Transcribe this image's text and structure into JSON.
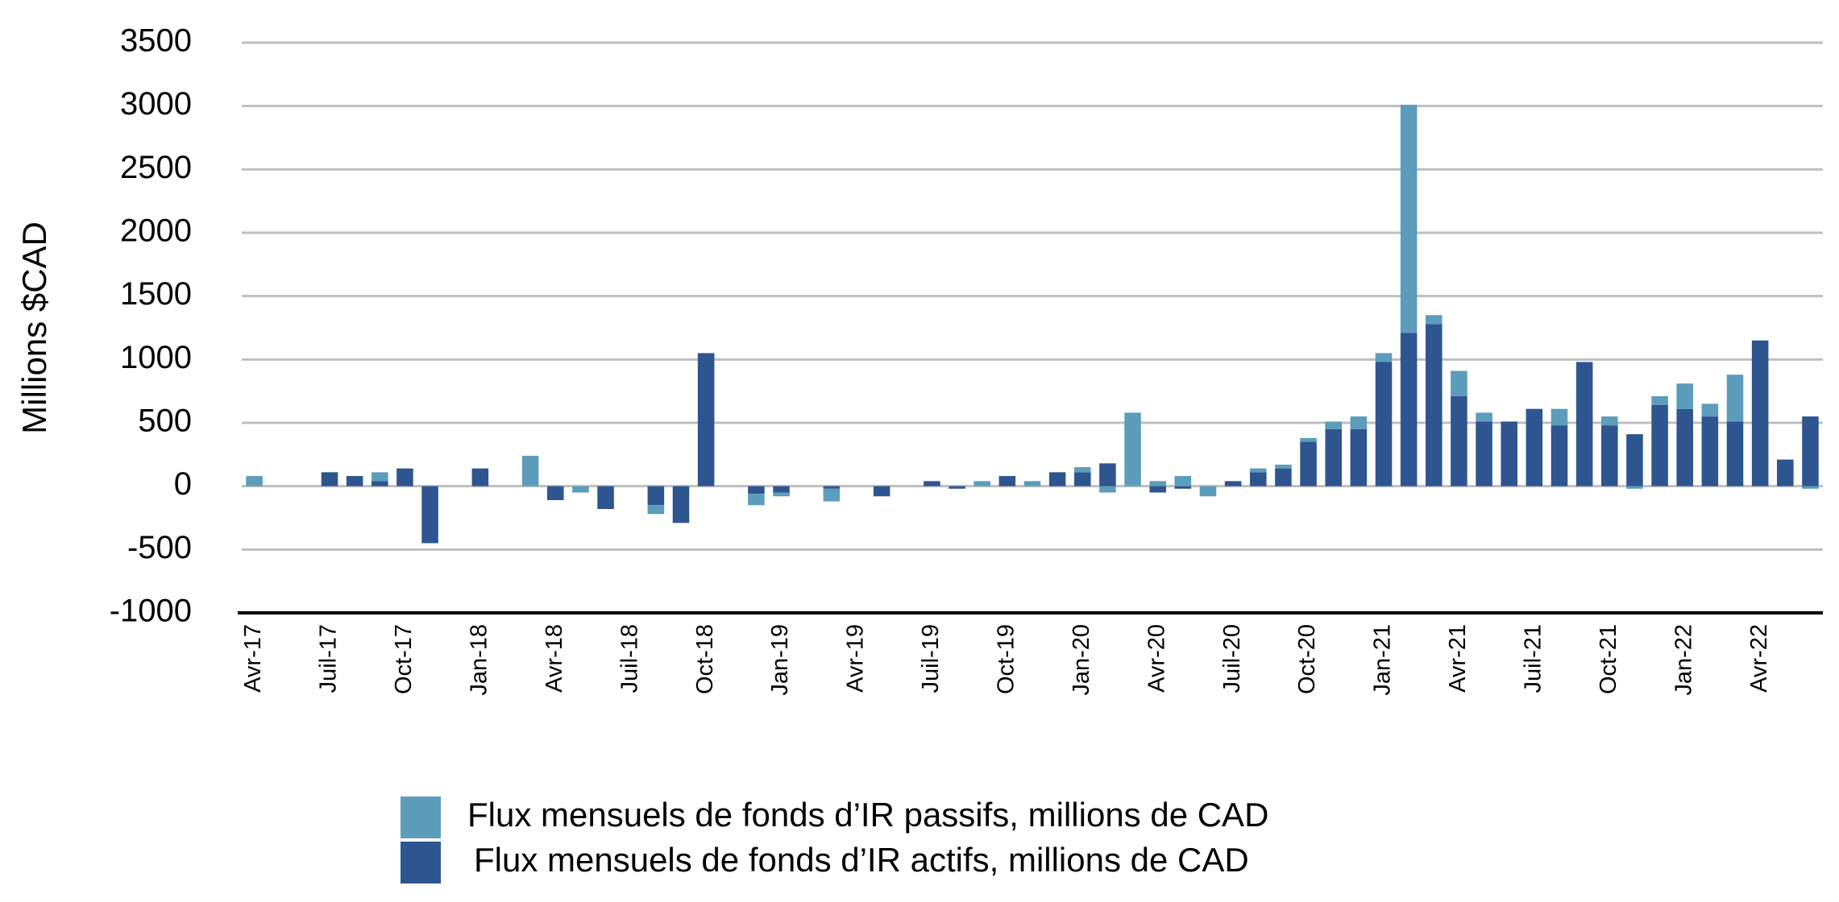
{
  "chart_data": {
    "type": "stacked-bar",
    "y_label": "Millions $CAD",
    "categories": [
      "Avr-17",
      null,
      null,
      "Juil-17",
      null,
      null,
      "Oct-17",
      null,
      null,
      "Jan-18",
      null,
      null,
      "Avr-18",
      null,
      null,
      "Juil-18",
      null,
      null,
      "Oct-18",
      null,
      null,
      "Jan-19",
      null,
      null,
      "Avr-19",
      null,
      null,
      "Juil-19",
      null,
      null,
      "Oct-19",
      null,
      null,
      "Jan-20",
      null,
      null,
      "Avr-20",
      null,
      null,
      "Juil-20",
      null,
      null,
      "Oct-20",
      null,
      null,
      "Jan-21",
      null,
      null,
      "Avr-21",
      null,
      null,
      "Juil-21",
      null,
      null,
      "Oct-21",
      null,
      null,
      "Jan-22",
      null,
      null,
      "Avr-22",
      null,
      null
    ],
    "series": [
      {
        "name": "Flux mensuels de fonds d’IR actifs, millions de CAD",
        "color": "#2e5590",
        "values": [
          0,
          0,
          0,
          110,
          80,
          40,
          140,
          -450,
          0,
          140,
          0,
          0,
          -110,
          0,
          -180,
          0,
          -150,
          -290,
          1050,
          0,
          -60,
          -50,
          0,
          -20,
          0,
          -80,
          0,
          40,
          -20,
          0,
          80,
          0,
          110,
          110,
          180,
          0,
          -50,
          -20,
          0,
          40,
          110,
          140,
          350,
          450,
          450,
          980,
          1210,
          1280,
          710,
          510,
          510,
          610,
          480,
          980,
          480,
          410,
          640,
          610,
          550,
          510,
          1150,
          210,
          550
        ]
      },
      {
        "name": "Flux mensuels de fonds d’IR passifs, millions de CAD",
        "color": "#5b9dba",
        "values": [
          80,
          0,
          0,
          0,
          0,
          70,
          0,
          0,
          0,
          0,
          0,
          240,
          0,
          -50,
          0,
          0,
          -70,
          0,
          0,
          0,
          -90,
          -30,
          0,
          -100,
          0,
          0,
          0,
          0,
          0,
          40,
          0,
          40,
          0,
          40,
          -50,
          580,
          40,
          80,
          -80,
          0,
          30,
          30,
          30,
          60,
          100,
          70,
          1800,
          70,
          200,
          70,
          0,
          0,
          130,
          0,
          70,
          -20,
          70,
          200,
          100,
          370,
          0,
          0,
          -20
        ]
      }
    ],
    "ylim": [
      -1000,
      3500
    ],
    "yticks": [
      -1000,
      -500,
      0,
      500,
      1000,
      1500,
      2000,
      2500,
      3000,
      3500
    ],
    "grid": true
  }
}
